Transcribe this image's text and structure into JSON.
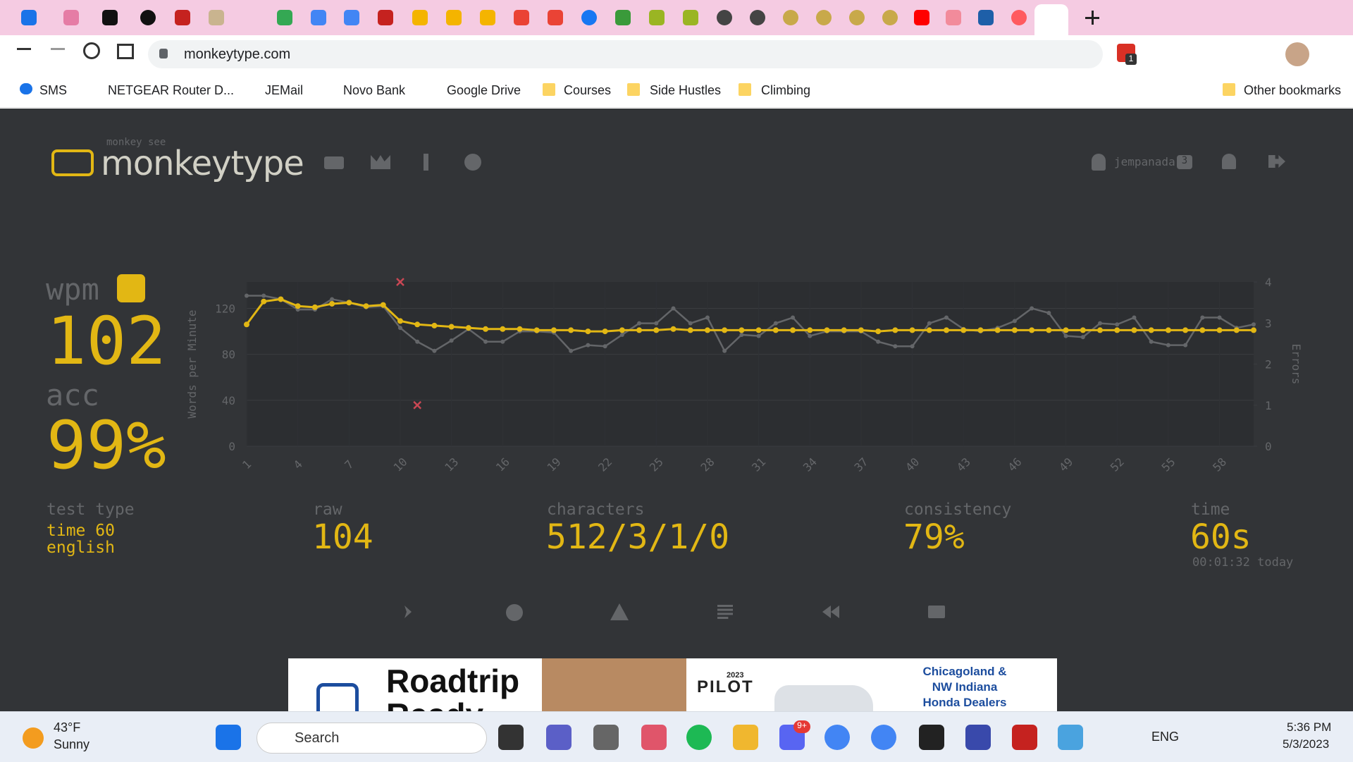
{
  "browser": {
    "url": "monkeytype.com",
    "bookmarks": [
      "SMS",
      "NETGEAR Router D...",
      "JEMail",
      "Novo Bank",
      "Google Drive",
      "Courses",
      "Side Hustles",
      "Climbing"
    ],
    "other_bookmarks": "Other bookmarks",
    "extension_badge": "1"
  },
  "header": {
    "tagline": "monkey see",
    "logo": "monkeytype",
    "user": "jempanada",
    "user_badge": "3"
  },
  "result": {
    "wpm_label": "wpm",
    "wpm": "102",
    "acc_label": "acc",
    "acc": "99%",
    "test_type_label": "test type",
    "test_type": [
      "time 60",
      "english"
    ],
    "raw_label": "raw",
    "raw": "104",
    "characters_label": "characters",
    "characters": "512/3/1/0",
    "consistency_label": "consistency",
    "consistency": "79%",
    "time_label": "time",
    "time": "60s",
    "time_note": "00:01:32 today"
  },
  "chart_data": {
    "type": "line",
    "x": [
      1,
      2,
      3,
      4,
      5,
      6,
      7,
      8,
      9,
      10,
      11,
      12,
      13,
      14,
      15,
      16,
      17,
      18,
      19,
      20,
      21,
      22,
      23,
      24,
      25,
      26,
      27,
      28,
      29,
      30,
      31,
      32,
      33,
      34,
      35,
      36,
      37,
      38,
      39,
      40,
      41,
      42,
      43,
      44,
      45,
      46,
      47,
      48,
      49,
      50,
      51,
      52,
      53,
      54,
      55,
      56,
      57,
      58,
      59,
      60
    ],
    "y_label": "Words per Minute",
    "y2_label": "Errors",
    "series": [
      {
        "color": "#646669",
        "values": [
          131,
          131,
          128,
          119,
          119,
          128,
          125,
          121,
          122,
          103,
          91,
          83,
          92,
          102,
          91,
          91,
          100,
          100,
          99,
          83,
          88,
          87,
          97,
          107,
          107,
          120,
          107,
          112,
          83,
          97,
          96,
          107,
          112,
          96,
          100,
          100,
          100,
          91,
          87,
          87,
          107,
          112,
          102,
          100,
          103,
          109,
          120,
          116,
          96,
          95,
          107,
          106,
          112,
          91,
          88,
          88,
          112,
          112,
          103,
          106
        ]
      },
      {
        "color": "#e2b714",
        "values": [
          106,
          126,
          128,
          122,
          121,
          124,
          125,
          122,
          123,
          109,
          106,
          105,
          104,
          103,
          102,
          102,
          102,
          101,
          101,
          101,
          100,
          100,
          101,
          101,
          101,
          102,
          101,
          101,
          101,
          101,
          101,
          101,
          101,
          101,
          101,
          101,
          101,
          100,
          101,
          101,
          101,
          101,
          101,
          101,
          101,
          101,
          101,
          101,
          101,
          101,
          101,
          101,
          101,
          101,
          101,
          101,
          101,
          101,
          101,
          101
        ]
      },
      {
        "color": "#ca4754",
        "axis": "y2",
        "x": [
          10,
          11
        ],
        "values": [
          4,
          1
        ]
      }
    ],
    "xlim": [
      1,
      60
    ],
    "xticks": [
      1,
      4,
      7,
      10,
      13,
      16,
      19,
      22,
      25,
      28,
      31,
      34,
      37,
      40,
      43,
      46,
      49,
      52,
      55,
      58
    ],
    "ylim": [
      0,
      143
    ],
    "yticks": [
      0,
      40,
      80,
      120
    ],
    "y2lim": [
      0,
      4
    ],
    "y2ticks": [
      0,
      1,
      2,
      3,
      4
    ],
    "grid": true
  },
  "ad": {
    "headline": "Roadtrip Ready",
    "year": "2023",
    "model": "PILOT",
    "dealer": "Chicagoland & NW Indiana Honda Dealers"
  },
  "taskbar": {
    "temperature": "43°F",
    "weather": "Sunny",
    "search": "Search",
    "discord_badge": "9+",
    "language": "ENG",
    "time": "5:36 PM",
    "date": "5/3/2023"
  }
}
